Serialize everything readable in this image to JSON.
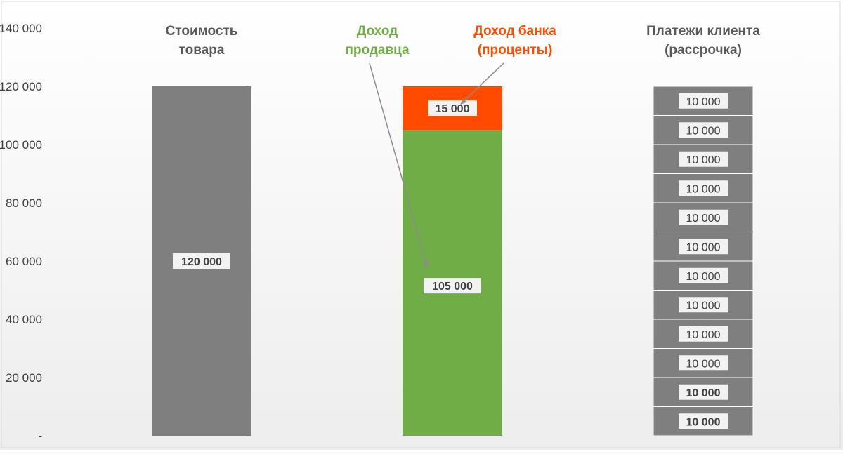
{
  "chart_data": {
    "type": "bar",
    "categories": [
      [
        "Стоимость",
        "товара"
      ],
      [
        "Доход",
        "продавца"
      ],
      [
        "Платежи клиента",
        "(рассрочка)"
      ]
    ],
    "ylim": [
      0,
      140000
    ],
    "yticks": [
      0,
      20000,
      40000,
      60000,
      80000,
      100000,
      120000,
      140000
    ],
    "ytick_labels": [
      "-",
      "20 000",
      "40 000",
      "60 000",
      "80 000",
      "100 000",
      "120 000",
      "140 000"
    ],
    "grid": false,
    "series": [
      {
        "category": 0,
        "name": "Стоимость товара",
        "value": 120000,
        "label": "120 000",
        "color": "#7f7f7f"
      },
      {
        "category": 1,
        "name": "Доход продавца",
        "value": 105000,
        "label": "105 000",
        "color": "#70ad47"
      },
      {
        "category": 1,
        "name": "Доход банка (проценты)",
        "value": 15000,
        "label": "15 000",
        "color": "#ff4b00"
      }
    ],
    "installments": {
      "category": 2,
      "count": 12,
      "value_each": 10000,
      "labels": [
        "10 000",
        "10 000",
        "10 000",
        "10 000",
        "10 000",
        "10 000",
        "10 000",
        "10 000",
        "10 000",
        "10 000",
        "10 000",
        "10 000"
      ],
      "color": "#7f7f7f"
    },
    "annotations": [
      {
        "text": [
          "Доход",
          "продавца"
        ],
        "color": "#70ad47",
        "points_to": "Доход продавца"
      },
      {
        "text": [
          "Доход банка",
          "(проценты)"
        ],
        "color": "#ff4b00",
        "points_to": "Доход банка (проценты)"
      }
    ]
  }
}
